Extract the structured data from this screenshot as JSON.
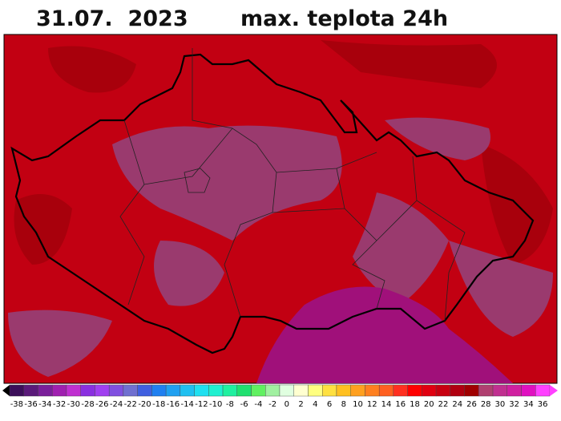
{
  "header": {
    "date": "31.07.  2023",
    "title": "max. teplota 24h"
  },
  "legend": {
    "labels": [
      -38,
      -36,
      -34,
      -32,
      -30,
      -28,
      -26,
      -24,
      -22,
      -20,
      -18,
      -16,
      -14,
      -12,
      -10,
      -8,
      -6,
      -4,
      -2,
      0,
      2,
      4,
      6,
      8,
      10,
      12,
      14,
      16,
      18,
      20,
      22,
      24,
      26,
      28,
      30,
      32,
      34,
      36
    ],
    "colors": [
      "#3b0f5a",
      "#5a1a7a",
      "#7a1f9a",
      "#a020b0",
      "#c030d0",
      "#8a30e0",
      "#a040f0",
      "#8050e0",
      "#7070d0",
      "#4060e0",
      "#2080f0",
      "#20a0f0",
      "#20c0f0",
      "#20e0f0",
      "#20f0d0",
      "#20f0a0",
      "#20e070",
      "#60f060",
      "#a0f0a0",
      "#e0ffe0",
      "#ffffd0",
      "#ffff80",
      "#ffe040",
      "#ffc020",
      "#ffa020",
      "#ff8020",
      "#ff6020",
      "#ff3020",
      "#ff0000",
      "#e00010",
      "#c80010",
      "#b00010",
      "#a00000",
      "#b04070",
      "#c03090",
      "#d020a0",
      "#e010c0",
      "#ff40ff"
    ]
  }
}
